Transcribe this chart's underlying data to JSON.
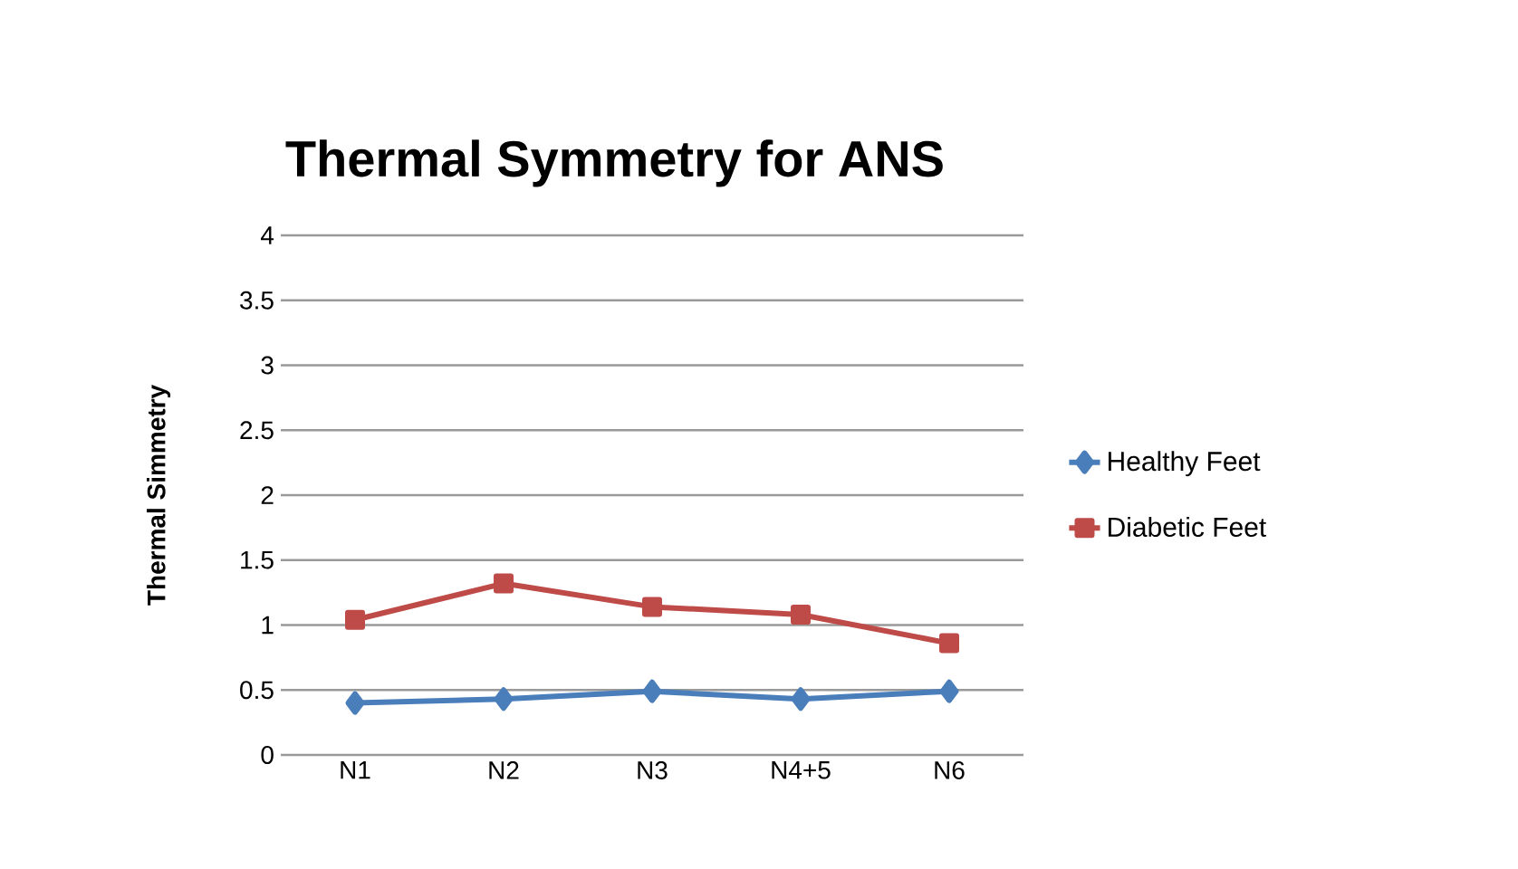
{
  "chart_data": {
    "type": "line",
    "title": "Thermal Symmetry for ANS",
    "ylabel": "Thermal Simmetry",
    "categories": [
      "N1",
      "N2",
      "N3",
      "N4+5",
      "N6"
    ],
    "series": [
      {
        "name": "Healthy Feet",
        "color": "#4a7ebb",
        "marker": "diamond",
        "values": [
          0.4,
          0.43,
          0.49,
          0.43,
          0.49
        ]
      },
      {
        "name": "Diabetic Feet",
        "color": "#be4b48",
        "marker": "square",
        "values": [
          1.04,
          1.32,
          1.14,
          1.08,
          0.86
        ]
      }
    ],
    "ylim": [
      0,
      4
    ],
    "yticks": [
      0,
      0.5,
      1,
      1.5,
      2,
      2.5,
      3,
      3.5,
      4
    ],
    "grid": "y",
    "legend": "right"
  }
}
